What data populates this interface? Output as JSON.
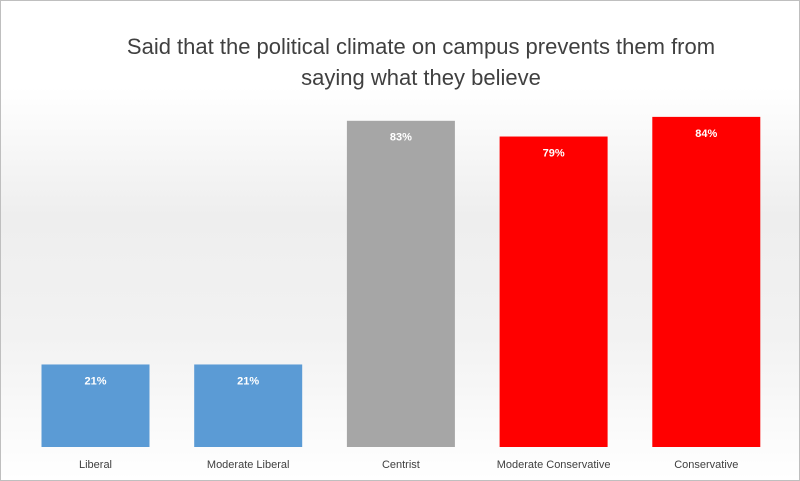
{
  "chart_data": {
    "type": "bar",
    "title": "Said that the political climate on campus prevents them from saying what they believe",
    "categories": [
      "Liberal",
      "Moderate Liberal",
      "Centrist",
      "Moderate Conservative",
      "Conservative"
    ],
    "values": [
      21,
      21,
      83,
      79,
      84
    ],
    "value_labels": [
      "21%",
      "21%",
      "83%",
      "79%",
      "84%"
    ],
    "colors": [
      "#5b9bd5",
      "#5b9bd5",
      "#a6a6a6",
      "#ff0000",
      "#ff0000"
    ]
  }
}
